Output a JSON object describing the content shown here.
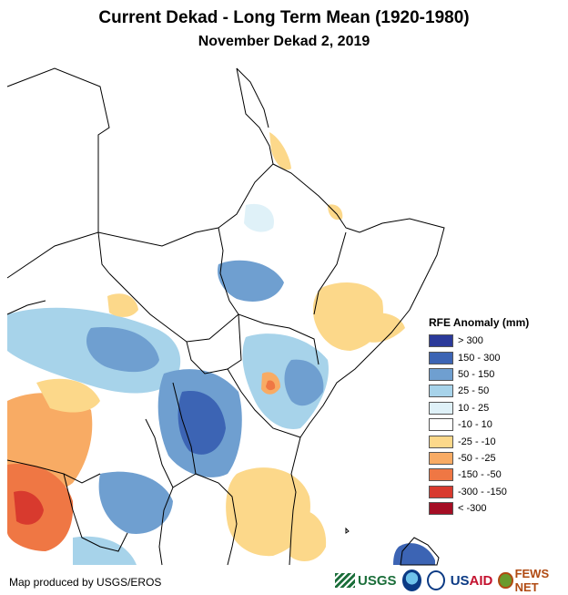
{
  "title": "Current Dekad - Long Term Mean (1920-1980)",
  "subtitle": "November Dekad 2, 2019",
  "legend": {
    "title": "RFE Anomaly (mm)",
    "items": [
      {
        "label": "> 300",
        "color": "#2b3a9a"
      },
      {
        "label": "150 - 300",
        "color": "#3c64b4"
      },
      {
        "label": "50 - 150",
        "color": "#6f9fd0"
      },
      {
        "label": "25 - 50",
        "color": "#a7d3ea"
      },
      {
        "label": "10 - 25",
        "color": "#dff1f8"
      },
      {
        "label": "-10 - 10",
        "color": "#ffffff"
      },
      {
        "label": "-25 - -10",
        "color": "#fcd88a"
      },
      {
        "label": "-50 - -25",
        "color": "#f8ab64"
      },
      {
        "label": "-150 - -50",
        "color": "#ef7744"
      },
      {
        "label": "-300 - -150",
        "color": "#d83a2e"
      },
      {
        "label": "< -300",
        "color": "#a50e24"
      }
    ]
  },
  "credit": "Map produced by USGS/EROS",
  "logos": {
    "usgs": "USGS",
    "usaid_prefix": "US",
    "usaid_suffix": "AID",
    "fews": "FEWS NET"
  }
}
